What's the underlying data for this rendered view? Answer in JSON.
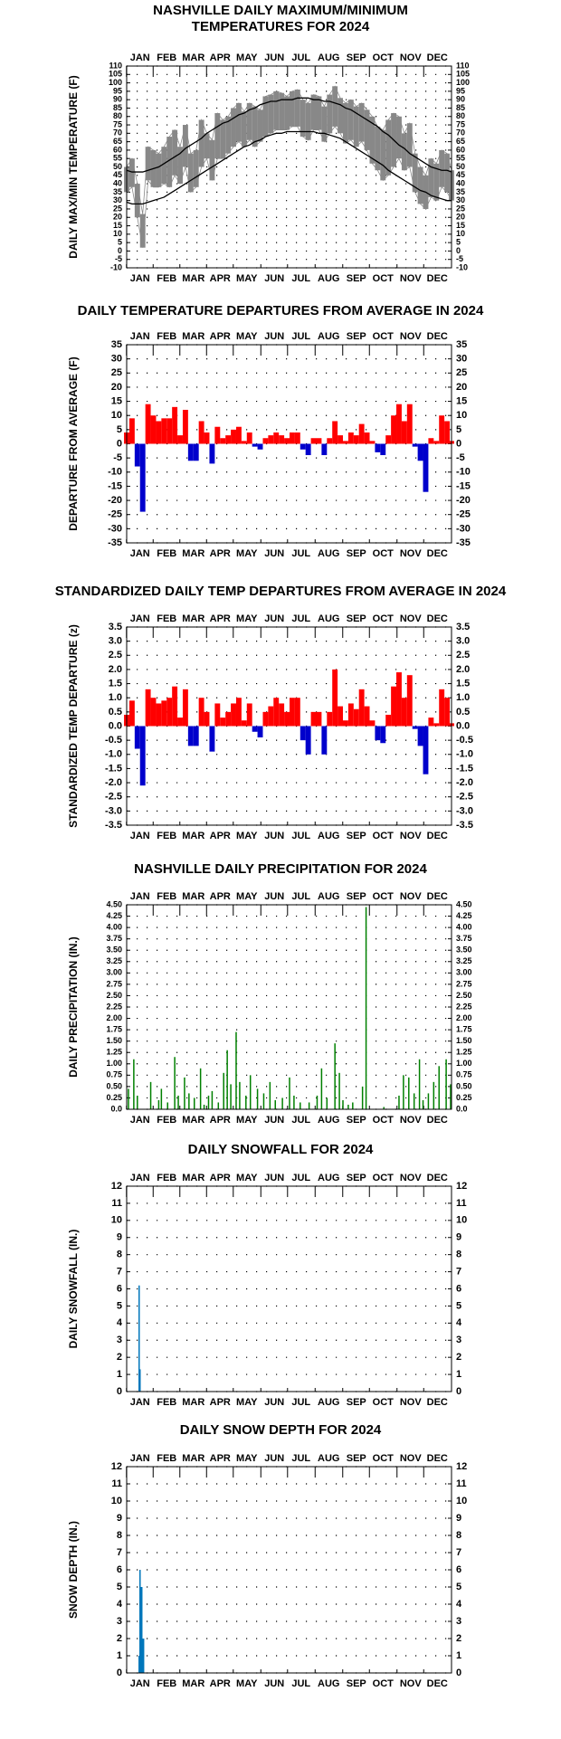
{
  "chart_data": [
    {
      "type": "line",
      "title": [
        "NASHVILLE DAILY MAXIMUM/MINIMUM",
        "TEMPERATURES FOR 2024"
      ],
      "y_label": "DAILY MAX/MIN TEMPERATURE (F)",
      "band": true,
      "grid": true,
      "xlim": [
        1,
        366
      ],
      "xticks": [
        {
          "value": 16,
          "label": "JAN"
        },
        {
          "value": 46,
          "label": "FEB"
        },
        {
          "value": 76,
          "label": "MAR"
        },
        {
          "value": 106,
          "label": "APR"
        },
        {
          "value": 136,
          "label": "MAY"
        },
        {
          "value": 167,
          "label": "JUN"
        },
        {
          "value": 197,
          "label": "JUL"
        },
        {
          "value": 228,
          "label": "AUG"
        },
        {
          "value": 259,
          "label": "SEP"
        },
        {
          "value": 289,
          "label": "OCT"
        },
        {
          "value": 320,
          "label": "NOV"
        },
        {
          "value": 350,
          "label": "DEC"
        }
      ],
      "ylim": [
        -10,
        110
      ],
      "yticks": [
        -10,
        -5,
        0,
        5,
        10,
        15,
        20,
        25,
        30,
        35,
        40,
        45,
        50,
        55,
        60,
        65,
        70,
        75,
        80,
        85,
        90,
        95,
        100,
        105,
        110
      ],
      "x": [
        1,
        7,
        13,
        19,
        25,
        31,
        37,
        43,
        49,
        55,
        61,
        67,
        73,
        79,
        85,
        91,
        97,
        103,
        109,
        115,
        121,
        127,
        133,
        139,
        145,
        151,
        157,
        163,
        169,
        175,
        181,
        187,
        193,
        199,
        205,
        211,
        217,
        223,
        229,
        235,
        241,
        247,
        253,
        259,
        265,
        271,
        277,
        283,
        289,
        295,
        301,
        307,
        313,
        319,
        325,
        331,
        337,
        343,
        349,
        355,
        361,
        366
      ],
      "series": [
        {
          "color": "#888888",
          "values": [
            50,
            55,
            40,
            22,
            62,
            60,
            58,
            62,
            68,
            72,
            62,
            75,
            58,
            60,
            78,
            70,
            66,
            82,
            78,
            80,
            85,
            88,
            83,
            88,
            86,
            84,
            92,
            93,
            95,
            94,
            92,
            95,
            96,
            90,
            88,
            93,
            92,
            86,
            93,
            98,
            91,
            88,
            90,
            86,
            88,
            84,
            80,
            74,
            72,
            78,
            82,
            80,
            70,
            76,
            58,
            50,
            45,
            55,
            52,
            60,
            58,
            48
          ]
        },
        {
          "color": "#888888",
          "values": [
            35,
            38,
            20,
            2,
            42,
            38,
            38,
            40,
            38,
            45,
            40,
            50,
            35,
            38,
            50,
            55,
            42,
            55,
            55,
            58,
            62,
            65,
            62,
            66,
            62,
            65,
            68,
            70,
            72,
            72,
            72,
            74,
            74,
            68,
            66,
            72,
            72,
            65,
            70,
            74,
            70,
            64,
            66,
            62,
            65,
            60,
            52,
            48,
            42,
            45,
            50,
            55,
            48,
            50,
            35,
            28,
            25,
            32,
            30,
            38,
            35,
            30
          ]
        },
        {
          "color": "#000000",
          "values": [
            48,
            47,
            47,
            47,
            48,
            49,
            50,
            52,
            54,
            56,
            58,
            61,
            63,
            65,
            67,
            70,
            72,
            74,
            76,
            77,
            79,
            81,
            82,
            84,
            85,
            87,
            88,
            89,
            89,
            90,
            90,
            90,
            91,
            91,
            91,
            90,
            90,
            89,
            89,
            88,
            87,
            85,
            84,
            82,
            80,
            78,
            76,
            74,
            71,
            69,
            66,
            63,
            61,
            58,
            56,
            54,
            52,
            50,
            49,
            48,
            48,
            47
          ]
        },
        {
          "color": "#000000",
          "values": [
            29,
            28,
            28,
            28,
            29,
            30,
            31,
            32,
            34,
            36,
            38,
            40,
            42,
            44,
            46,
            48,
            50,
            52,
            54,
            56,
            58,
            60,
            62,
            63,
            65,
            66,
            68,
            69,
            70,
            70,
            71,
            71,
            71,
            71,
            71,
            71,
            70,
            70,
            69,
            68,
            67,
            65,
            63,
            61,
            59,
            57,
            55,
            53,
            51,
            48,
            46,
            44,
            42,
            40,
            38,
            36,
            35,
            33,
            32,
            31,
            30,
            30
          ]
        }
      ]
    },
    {
      "type": "bar",
      "title": "DAILY TEMPERATURE DEPARTURES FROM AVERAGE IN 2024",
      "y_label": "DEPARTURE FROM AVERAGE (F)",
      "grid": true,
      "color": "#ff0000",
      "negative_color": "#0000cc",
      "xlim": [
        1,
        366
      ],
      "xticks": [
        {
          "value": 16,
          "label": "JAN"
        },
        {
          "value": 46,
          "label": "FEB"
        },
        {
          "value": 76,
          "label": "MAR"
        },
        {
          "value": 106,
          "label": "APR"
        },
        {
          "value": 136,
          "label": "MAY"
        },
        {
          "value": 167,
          "label": "JUN"
        },
        {
          "value": 197,
          "label": "JUL"
        },
        {
          "value": 228,
          "label": "AUG"
        },
        {
          "value": 259,
          "label": "SEP"
        },
        {
          "value": 289,
          "label": "OCT"
        },
        {
          "value": 320,
          "label": "NOV"
        },
        {
          "value": 350,
          "label": "DEC"
        }
      ],
      "ylim": [
        -35,
        35
      ],
      "yticks": [
        -35,
        -30,
        -25,
        -20,
        -15,
        -10,
        -5,
        0,
        5,
        10,
        15,
        20,
        25,
        30,
        35
      ],
      "x": [
        1,
        7,
        13,
        19,
        25,
        31,
        37,
        43,
        49,
        55,
        61,
        67,
        73,
        79,
        85,
        91,
        97,
        103,
        109,
        115,
        121,
        127,
        133,
        139,
        145,
        151,
        157,
        163,
        169,
        175,
        181,
        187,
        193,
        199,
        205,
        211,
        217,
        223,
        229,
        235,
        241,
        247,
        253,
        259,
        265,
        271,
        277,
        283,
        289,
        295,
        301,
        307,
        313,
        319,
        325,
        331,
        337,
        343,
        349,
        355,
        361,
        366
      ],
      "values": [
        4,
        9,
        -8,
        -24,
        14,
        10,
        8,
        9,
        9,
        13,
        3,
        12,
        -6,
        -6,
        8,
        4,
        -7,
        6,
        2,
        3,
        5,
        6,
        1,
        4,
        -1,
        -2,
        2,
        3,
        4,
        3,
        2,
        4,
        4,
        -2,
        -4,
        2,
        2,
        -4,
        2,
        8,
        3,
        1,
        4,
        3,
        7,
        4,
        1,
        -3,
        -4,
        3,
        10,
        14,
        8,
        14,
        -1,
        -6,
        -17,
        2,
        1,
        10,
        8,
        1
      ]
    },
    {
      "type": "bar",
      "title": "STANDARDIZED DAILY TEMP DEPARTURES FROM AVERAGE IN 2024",
      "y_label": "STANDARDIZED TEMP DEPARTURE (z)",
      "grid": true,
      "color": "#ff0000",
      "negative_color": "#0000cc",
      "xlim": [
        1,
        366
      ],
      "xticks": [
        {
          "value": 16,
          "label": "JAN"
        },
        {
          "value": 46,
          "label": "FEB"
        },
        {
          "value": 76,
          "label": "MAR"
        },
        {
          "value": 106,
          "label": "APR"
        },
        {
          "value": 136,
          "label": "MAY"
        },
        {
          "value": 167,
          "label": "JUN"
        },
        {
          "value": 197,
          "label": "JUL"
        },
        {
          "value": 228,
          "label": "AUG"
        },
        {
          "value": 259,
          "label": "SEP"
        },
        {
          "value": 289,
          "label": "OCT"
        },
        {
          "value": 320,
          "label": "NOV"
        },
        {
          "value": 350,
          "label": "DEC"
        }
      ],
      "ylim": [
        -3.5,
        3.5
      ],
      "yticks": [
        -3.5,
        {
          "value": -3,
          "label": "-3.0"
        },
        -2.5,
        {
          "value": -2,
          "label": "-2.0"
        },
        -1.5,
        {
          "value": -1,
          "label": "-1.0"
        },
        -0.5,
        {
          "value": 0,
          "label": "0.0"
        },
        0.5,
        {
          "value": 1,
          "label": "1.0"
        },
        1.5,
        {
          "value": 2,
          "label": "2.0"
        },
        2.5,
        {
          "value": 3,
          "label": "3.0"
        },
        3.5
      ],
      "x": [
        1,
        7,
        13,
        19,
        25,
        31,
        37,
        43,
        49,
        55,
        61,
        67,
        73,
        79,
        85,
        91,
        97,
        103,
        109,
        115,
        121,
        127,
        133,
        139,
        145,
        151,
        157,
        163,
        169,
        175,
        181,
        187,
        193,
        199,
        205,
        211,
        217,
        223,
        229,
        235,
        241,
        247,
        253,
        259,
        265,
        271,
        277,
        283,
        289,
        295,
        301,
        307,
        313,
        319,
        325,
        331,
        337,
        343,
        349,
        355,
        361,
        366
      ],
      "values": [
        0.4,
        0.9,
        -0.8,
        -2.1,
        1.3,
        1.0,
        0.8,
        0.9,
        1.0,
        1.4,
        0.3,
        1.3,
        -0.7,
        -0.7,
        1.0,
        0.5,
        -0.9,
        0.8,
        0.3,
        0.5,
        0.8,
        1.0,
        0.2,
        0.8,
        -0.2,
        -0.4,
        0.5,
        0.7,
        1.0,
        0.8,
        0.5,
        1.0,
        1.0,
        -0.5,
        -1.0,
        0.5,
        0.5,
        -1.0,
        0.5,
        2.0,
        0.7,
        0.2,
        0.8,
        0.6,
        1.3,
        0.7,
        0.2,
        -0.5,
        -0.6,
        0.4,
        1.4,
        1.9,
        1.0,
        1.8,
        -0.1,
        -0.7,
        -1.7,
        0.3,
        0.1,
        1.3,
        1.0,
        0.1
      ]
    },
    {
      "type": "bar",
      "title": "NASHVILLE DAILY PRECIPITATION FOR 2024",
      "y_label": "DAILY PRECIPITATION (IN.)",
      "grid": true,
      "color": "#008000",
      "xlim": [
        1,
        366
      ],
      "xticks": [
        {
          "value": 16,
          "label": "JAN"
        },
        {
          "value": 46,
          "label": "FEB"
        },
        {
          "value": 76,
          "label": "MAR"
        },
        {
          "value": 106,
          "label": "APR"
        },
        {
          "value": 136,
          "label": "MAY"
        },
        {
          "value": 167,
          "label": "JUN"
        },
        {
          "value": 197,
          "label": "JUL"
        },
        {
          "value": 228,
          "label": "AUG"
        },
        {
          "value": 259,
          "label": "SEP"
        },
        {
          "value": 289,
          "label": "OCT"
        },
        {
          "value": 320,
          "label": "NOV"
        },
        {
          "value": 350,
          "label": "DEC"
        }
      ],
      "ylim": [
        0,
        4.5
      ],
      "yticks": [
        {
          "value": 0,
          "label": "0.0"
        },
        0.25,
        {
          "value": 0.5,
          "label": "0.50"
        },
        0.75,
        {
          "value": 1,
          "label": "1.00"
        },
        1.25,
        {
          "value": 1.5,
          "label": "1.50"
        },
        1.75,
        {
          "value": 2,
          "label": "2.00"
        },
        2.25,
        {
          "value": 2.5,
          "label": "2.50"
        },
        2.75,
        {
          "value": 3,
          "label": "3.00"
        },
        3.25,
        {
          "value": 3.5,
          "label": "3.50"
        },
        3.75,
        {
          "value": 4,
          "label": "4.00"
        },
        4.25,
        {
          "value": 4.5,
          "label": "4.50"
        }
      ],
      "x": [
        3,
        9,
        13,
        28,
        37,
        40,
        47,
        55,
        59,
        66,
        71,
        77,
        84,
        88,
        93,
        97,
        104,
        110,
        114,
        118,
        124,
        128,
        135,
        140,
        148,
        155,
        162,
        168,
        176,
        184,
        189,
        196,
        206,
        215,
        220,
        226,
        235,
        240,
        244,
        250,
        255,
        266,
        270,
        290,
        307,
        312,
        318,
        324,
        330,
        334,
        340,
        346,
        352,
        360,
        365
      ],
      "values": [
        0.45,
        1.1,
        0.3,
        0.6,
        0.2,
        0.45,
        0.15,
        1.15,
        0.3,
        0.7,
        0.35,
        0.25,
        0.9,
        0.1,
        0.3,
        0.4,
        0.15,
        0.8,
        1.3,
        0.55,
        1.7,
        0.6,
        0.3,
        0.75,
        0.45,
        0.35,
        0.6,
        0.2,
        0.25,
        0.7,
        0.3,
        0.15,
        0.15,
        0.3,
        0.9,
        0.25,
        1.45,
        0.8,
        0.2,
        0.1,
        0.15,
        0.5,
        4.45,
        0.05,
        0.3,
        0.75,
        0.7,
        0.35,
        1.1,
        0.2,
        0.35,
        0.6,
        0.95,
        1.1,
        0.55
      ]
    },
    {
      "type": "bar",
      "title": "DAILY SNOWFALL FOR 2024",
      "y_label": "DAILY SNOWFALL (IN.)",
      "grid": true,
      "color": "#0077bb",
      "xlim": [
        1,
        366
      ],
      "xticks": [
        {
          "value": 16,
          "label": "JAN"
        },
        {
          "value": 46,
          "label": "FEB"
        },
        {
          "value": 76,
          "label": "MAR"
        },
        {
          "value": 106,
          "label": "APR"
        },
        {
          "value": 136,
          "label": "MAY"
        },
        {
          "value": 167,
          "label": "JUN"
        },
        {
          "value": 197,
          "label": "JUL"
        },
        {
          "value": 228,
          "label": "AUG"
        },
        {
          "value": 259,
          "label": "SEP"
        },
        {
          "value": 289,
          "label": "OCT"
        },
        {
          "value": 320,
          "label": "NOV"
        },
        {
          "value": 350,
          "label": "DEC"
        }
      ],
      "ylim": [
        0,
        12
      ],
      "yticks": [
        0,
        1,
        2,
        3,
        4,
        5,
        6,
        7,
        8,
        9,
        10,
        11,
        12
      ],
      "x": [
        15,
        16
      ],
      "values": [
        6.2,
        1.3
      ]
    },
    {
      "type": "bar",
      "title": "DAILY SNOW DEPTH FOR 2024",
      "y_label": "SNOW DEPTH (IN.)",
      "grid": true,
      "color": "#0077bb",
      "xlim": [
        1,
        366
      ],
      "xticks": [
        {
          "value": 16,
          "label": "JAN"
        },
        {
          "value": 46,
          "label": "FEB"
        },
        {
          "value": 76,
          "label": "MAR"
        },
        {
          "value": 106,
          "label": "APR"
        },
        {
          "value": 136,
          "label": "MAY"
        },
        {
          "value": 167,
          "label": "JUN"
        },
        {
          "value": 197,
          "label": "JUL"
        },
        {
          "value": 228,
          "label": "AUG"
        },
        {
          "value": 259,
          "label": "SEP"
        },
        {
          "value": 289,
          "label": "OCT"
        },
        {
          "value": 320,
          "label": "NOV"
        },
        {
          "value": 350,
          "label": "DEC"
        }
      ],
      "ylim": [
        0,
        12
      ],
      "yticks": [
        0,
        1,
        2,
        3,
        4,
        5,
        6,
        7,
        8,
        9,
        10,
        11,
        12
      ],
      "x": [
        15,
        16,
        17,
        18,
        19,
        20
      ],
      "values": [
        1,
        6,
        5,
        5,
        2,
        2
      ]
    }
  ]
}
